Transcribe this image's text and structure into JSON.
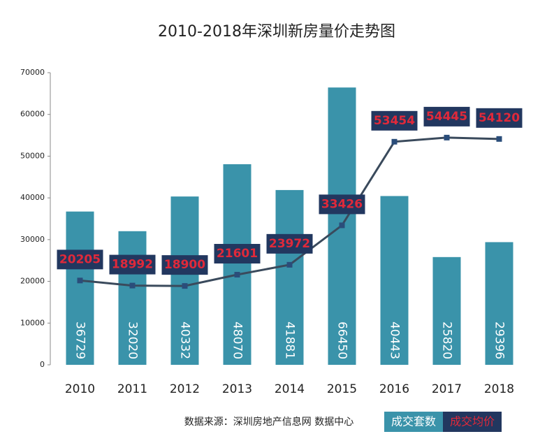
{
  "chart_data": {
    "type": "bar",
    "title": "2010-2018年深圳新房量价走势图",
    "source": "数据来源：深圳房地产信息网 数据中心",
    "categories": [
      "2010",
      "2011",
      "2012",
      "2013",
      "2014",
      "2015",
      "2016",
      "2017",
      "2018"
    ],
    "series": [
      {
        "name": "成交套数",
        "type": "bar",
        "color": "#3a93aa",
        "values": [
          36729,
          32020,
          40332,
          48070,
          41881,
          66450,
          40443,
          25820,
          29396
        ]
      },
      {
        "name": "成交均价",
        "type": "line",
        "color": "#3a4a5c",
        "label_color": "#e0293a",
        "label_box": "#22375f",
        "values": [
          20205,
          18992,
          18900,
          21601,
          23972,
          33426,
          53454,
          54445,
          54120
        ]
      }
    ],
    "ylim": [
      0,
      70000
    ],
    "yticks": [
      0,
      10000,
      20000,
      30000,
      40000,
      50000,
      60000,
      70000
    ],
    "grid": false
  }
}
